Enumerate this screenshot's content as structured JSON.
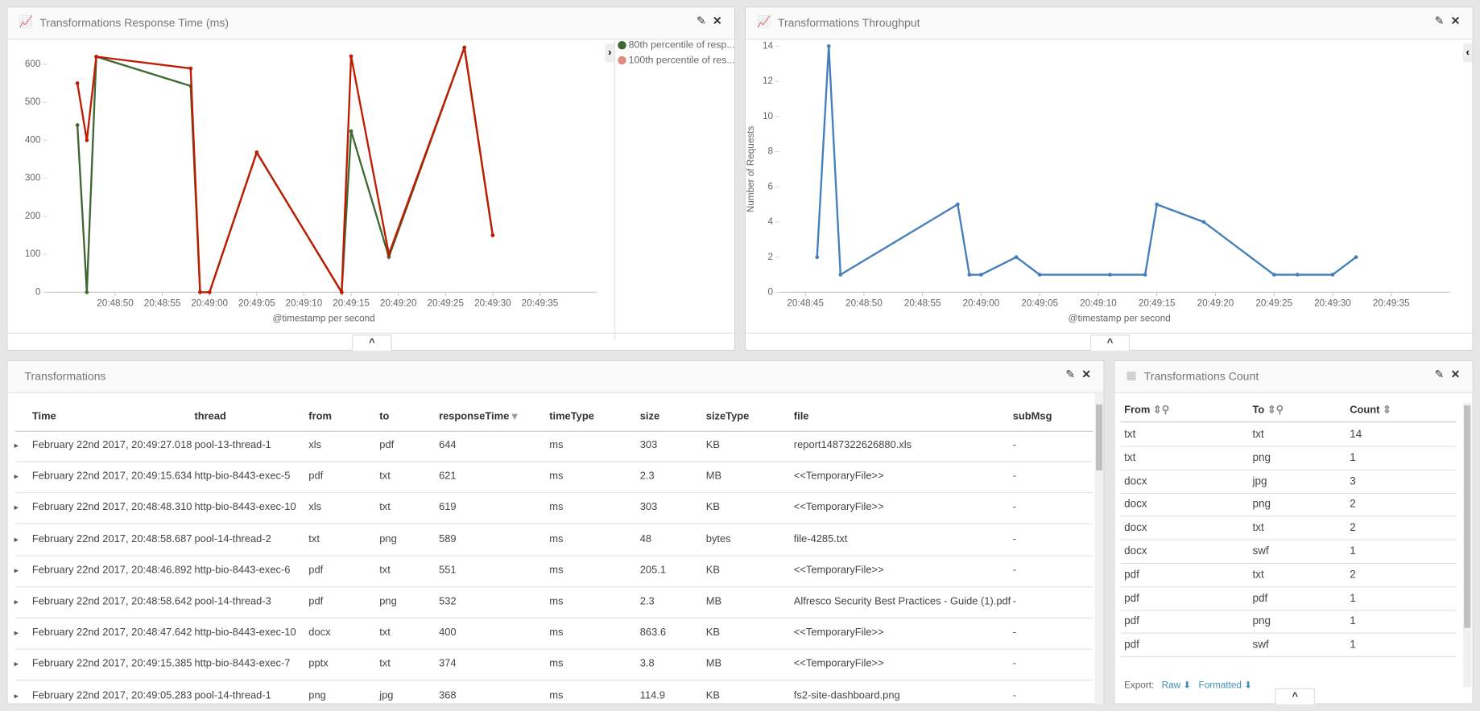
{
  "chart_data": [
    {
      "type": "line",
      "title": "Transformations Response Time (ms)",
      "x_label": "@timestamp per second",
      "x": [
        "20:48:46",
        "20:48:47",
        "20:48:48",
        "20:48:58",
        "20:48:59",
        "20:49:00",
        "20:49:05",
        "20:49:14",
        "20:49:15",
        "20:49:19",
        "20:49:27",
        "20:49:30"
      ],
      "series": [
        {
          "name": "80th percentile of resp...",
          "color": "#3f6833",
          "values": [
            440,
            0,
            620,
            543,
            0,
            0,
            368,
            0,
            424,
            93,
            644,
            150
          ]
        },
        {
          "name": "100th percentile of res...",
          "color": "#bf1b00",
          "values": [
            550,
            400,
            620,
            589,
            0,
            0,
            368,
            0,
            621,
            100,
            644,
            150
          ]
        }
      ],
      "xlim": [
        "20:48:42",
        "20:49:41"
      ],
      "xticks": [
        "20:48:50",
        "20:48:55",
        "20:49:00",
        "20:49:05",
        "20:49:10",
        "20:49:15",
        "20:49:20",
        "20:49:25",
        "20:49:30",
        "20:49:35"
      ],
      "ylim": [
        0,
        650
      ],
      "yticks": [
        0,
        100,
        200,
        300,
        400,
        500,
        600
      ],
      "grid": false,
      "legend": "right"
    },
    {
      "type": "line",
      "title": "Transformations Throughput",
      "x_label": "@timestamp per second",
      "y_label": "Number of Requests",
      "x": [
        "20:48:46",
        "20:48:47",
        "20:48:48",
        "20:48:58",
        "20:48:59",
        "20:49:00",
        "20:49:03",
        "20:49:05",
        "20:49:11",
        "20:49:14",
        "20:49:15",
        "20:49:19",
        "20:49:25",
        "20:49:27",
        "20:49:30",
        "20:49:32"
      ],
      "values": [
        2,
        14,
        1,
        5,
        1,
        1,
        2,
        1,
        1,
        1,
        5,
        4,
        1,
        1,
        1,
        2
      ],
      "color": "#447ebc",
      "xlim": [
        "20:48:42",
        "20:49:40"
      ],
      "xticks": [
        "20:48:45",
        "20:48:50",
        "20:48:55",
        "20:49:00",
        "20:49:05",
        "20:49:10",
        "20:49:15",
        "20:49:20",
        "20:49:25",
        "20:49:30",
        "20:49:35"
      ],
      "ylim": [
        0,
        14
      ],
      "yticks": [
        0,
        2,
        4,
        6,
        8,
        10,
        12,
        14
      ],
      "grid": false
    }
  ],
  "table": {
    "title": "Transformations",
    "columns": [
      "Time",
      "thread",
      "from",
      "to",
      "responseTime",
      "timeType",
      "size",
      "sizeType",
      "file",
      "subMsg"
    ],
    "rows": [
      [
        "February 22nd 2017, 20:49:27.018",
        "pool-13-thread-1",
        "xls",
        "pdf",
        644,
        "ms",
        303,
        "KB",
        "report1487322626880.xls",
        "-"
      ],
      [
        "February 22nd 2017, 20:49:15.634",
        "http-bio-8443-exec-5",
        "pdf",
        "txt",
        621,
        "ms",
        2.3,
        "MB",
        "<<TemporaryFile>>",
        "-"
      ],
      [
        "February 22nd 2017, 20:48:48.310",
        "http-bio-8443-exec-10",
        "xls",
        "txt",
        619,
        "ms",
        303,
        "KB",
        "<<TemporaryFile>>",
        "-"
      ],
      [
        "February 22nd 2017, 20:48:58.687",
        "pool-14-thread-2",
        "txt",
        "png",
        589,
        "ms",
        48,
        "bytes",
        "file-4285.txt",
        "-"
      ],
      [
        "February 22nd 2017, 20:48:46.892",
        "http-bio-8443-exec-6",
        "pdf",
        "txt",
        551,
        "ms",
        205.1,
        "KB",
        "<<TemporaryFile>>",
        "-"
      ],
      [
        "February 22nd 2017, 20:48:58.642",
        "pool-14-thread-3",
        "pdf",
        "png",
        532,
        "ms",
        2.3,
        "MB",
        "Alfresco Security Best Practices - Guide (1).pdf",
        "-"
      ],
      [
        "February 22nd 2017, 20:48:47.642",
        "http-bio-8443-exec-10",
        "docx",
        "txt",
        400,
        "ms",
        863.6,
        "KB",
        "<<TemporaryFile>>",
        "-"
      ],
      [
        "February 22nd 2017, 20:49:15.385",
        "http-bio-8443-exec-7",
        "pptx",
        "txt",
        374,
        "ms",
        3.8,
        "MB",
        "<<TemporaryFile>>",
        "-"
      ],
      [
        "February 22nd 2017, 20:49:05.283",
        "pool-14-thread-1",
        "png",
        "jpg",
        368,
        "ms",
        114.9,
        "KB",
        "fs2-site-dashboard.png",
        "-"
      ]
    ]
  },
  "count_table": {
    "title": "Transformations Count",
    "columns": [
      "From",
      "To",
      "Count"
    ],
    "rows": [
      [
        "txt",
        "txt",
        14
      ],
      [
        "txt",
        "png",
        1
      ],
      [
        "docx",
        "jpg",
        3
      ],
      [
        "docx",
        "png",
        2
      ],
      [
        "docx",
        "txt",
        2
      ],
      [
        "docx",
        "swf",
        1
      ],
      [
        "pdf",
        "txt",
        2
      ],
      [
        "pdf",
        "pdf",
        1
      ],
      [
        "pdf",
        "png",
        1
      ],
      [
        "pdf",
        "swf",
        1
      ]
    ],
    "export_label": "Export:",
    "export_links": [
      "Raw",
      "Formatted"
    ]
  }
}
